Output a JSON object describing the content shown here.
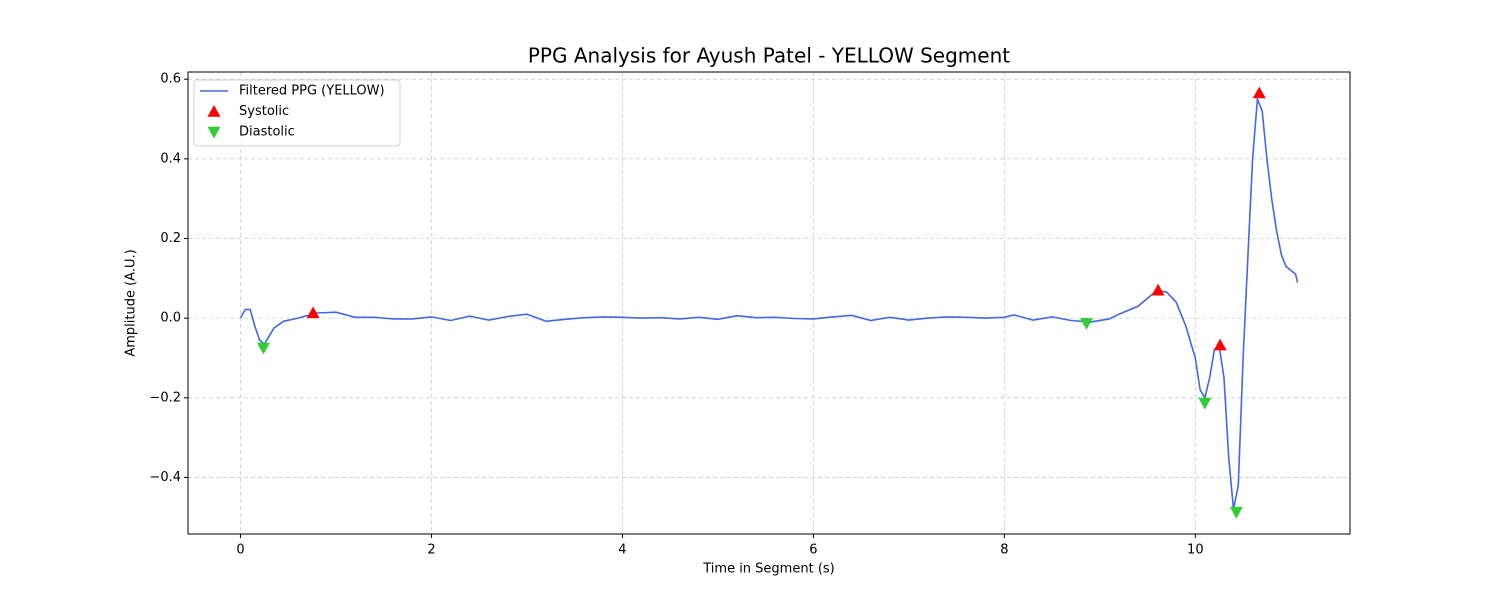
{
  "chart_data": {
    "type": "line",
    "title": "PPG Analysis for Ayush Patel - YELLOW Segment",
    "xlabel": "Time in Segment (s)",
    "ylabel": "Amplitude (A.U.)",
    "xlim": [
      -0.55,
      11.62
    ],
    "ylim": [
      -0.542,
      0.618
    ],
    "xticks": [
      0,
      2,
      4,
      6,
      8,
      10
    ],
    "yticks": [
      {
        "value": -0.4,
        "label": "−0.4"
      },
      {
        "value": -0.2,
        "label": "−0.2"
      },
      {
        "value": 0,
        "label": "0.0"
      },
      0.2,
      0.4,
      0.6
    ],
    "grid": true,
    "legend": "upper left",
    "series": [
      {
        "name": "Filtered PPG (YELLOW)",
        "color": "#4169e1",
        "marker": "none",
        "x": [
          0,
          0.05,
          0.1,
          0.15,
          0.2,
          0.25,
          0.3,
          0.35,
          0.45,
          0.6,
          0.8,
          1.0,
          1.2,
          1.4,
          1.6,
          1.8,
          2.0,
          2.2,
          2.4,
          2.6,
          2.8,
          3.0,
          3.2,
          3.4,
          3.6,
          3.8,
          4.0,
          4.2,
          4.4,
          4.6,
          4.8,
          5.0,
          5.2,
          5.4,
          5.6,
          5.8,
          6.0,
          6.2,
          6.4,
          6.6,
          6.8,
          7.0,
          7.2,
          7.4,
          7.6,
          7.8,
          8.0,
          8.1,
          8.3,
          8.5,
          8.7,
          8.9,
          9.1,
          9.2,
          9.4,
          9.6,
          9.7,
          9.8,
          9.9,
          10.0,
          10.05,
          10.1,
          10.15,
          10.2,
          10.25,
          10.3,
          10.35,
          10.4,
          10.45,
          10.5,
          10.55,
          10.6,
          10.65,
          10.7,
          10.75,
          10.8,
          10.85,
          10.9,
          10.95,
          11.0,
          11.05,
          11.07
        ],
        "values": [
          0,
          0.022,
          0.022,
          -0.02,
          -0.055,
          -0.065,
          -0.045,
          -0.025,
          -0.008,
          0,
          0.013,
          0.015,
          0.002,
          0.002,
          -0.002,
          -0.002,
          0.003,
          -0.006,
          0.005,
          -0.005,
          0.004,
          0.01,
          -0.008,
          -0.003,
          0.001,
          0.003,
          0.002,
          0,
          0.001,
          -0.002,
          0.002,
          -0.003,
          0.006,
          0.001,
          0.002,
          -0.001,
          -0.002,
          0.003,
          0.007,
          -0.006,
          0.002,
          -0.005,
          0,
          0.003,
          0.002,
          0,
          0.002,
          0.008,
          -0.005,
          0.003,
          -0.006,
          -0.01,
          -0.002,
          0.01,
          0.03,
          0.07,
          0.065,
          0.04,
          -0.02,
          -0.1,
          -0.18,
          -0.2,
          -0.15,
          -0.08,
          -0.07,
          -0.15,
          -0.35,
          -0.48,
          -0.42,
          -0.1,
          0.15,
          0.4,
          0.55,
          0.52,
          0.4,
          0.3,
          0.22,
          0.16,
          0.13,
          0.12,
          0.11,
          0.09
        ]
      },
      {
        "name": "Systolic",
        "color": "#ff0000",
        "marker": "triangle-up",
        "x": [
          0.76,
          9.61,
          10.26,
          10.67
        ],
        "values": [
          0.013,
          0.07,
          -0.068,
          0.565
        ]
      },
      {
        "name": "Diastolic",
        "color": "#32cd32",
        "marker": "triangle-down",
        "x": [
          0.24,
          8.86,
          10.1,
          10.43
        ],
        "values": [
          -0.075,
          -0.013,
          -0.213,
          -0.487
        ]
      }
    ]
  }
}
